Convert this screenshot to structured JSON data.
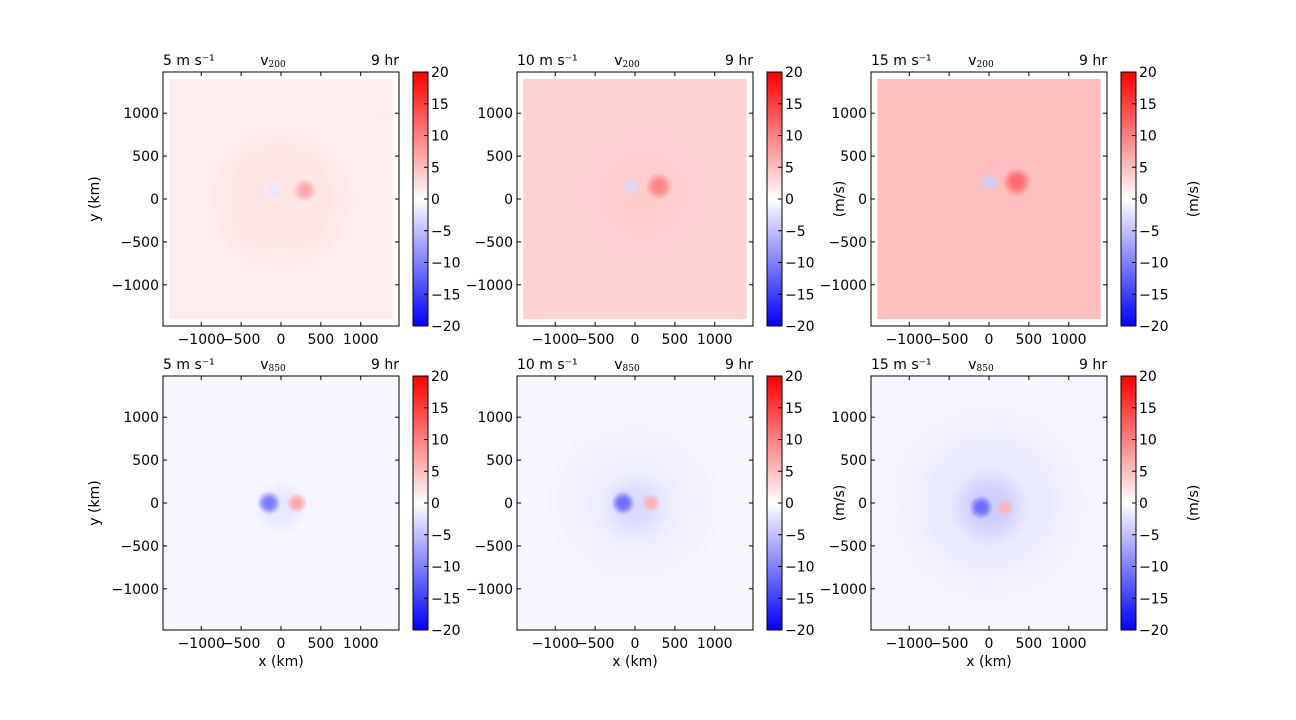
{
  "colors": {
    "bg": "#ffffff",
    "axis": "#000000",
    "cmap_min": "#0000ff",
    "cmap_mid": "#ffffff",
    "cmap_max": "#ff0000"
  },
  "chart_data": [
    {
      "type": "heatmap",
      "left_label": "5 m s⁻¹",
      "title": "v",
      "title_sub": "200",
      "right_label": "9 hr",
      "xlabel": "",
      "ylabel": "y (km)",
      "cbar_label": "",
      "xlim": [
        -1480,
        1480
      ],
      "ylim": [
        -1480,
        1480
      ],
      "xticks": [
        -1000,
        -500,
        0,
        500,
        1000
      ],
      "xtick_labels": [
        "−1000",
        "−500",
        "0",
        "500",
        "1000"
      ],
      "yticks": [
        -1000,
        -500,
        0,
        500,
        1000
      ],
      "ytick_labels": [
        "−1000",
        "−500",
        "0",
        "500",
        "1000"
      ],
      "clim": [
        -20,
        20
      ],
      "cbar_ticks": [
        20,
        15,
        10,
        5,
        0,
        -5,
        -10,
        -15,
        -20
      ],
      "cbar_tick_labels": [
        "20",
        "15",
        "10",
        "5",
        "0",
        "−5",
        "−10",
        "−15",
        "−20"
      ],
      "background_value": 1.5,
      "domain_half_width": 1400,
      "features": [
        {
          "x": 300,
          "y": 100,
          "value": 7,
          "radius": 150
        },
        {
          "x": -100,
          "y": 100,
          "value": -2,
          "radius": 110
        },
        {
          "x": 0,
          "y": 0,
          "value": 2,
          "radius": 950
        }
      ]
    },
    {
      "type": "heatmap",
      "left_label": "10 m s⁻¹",
      "title": "v",
      "title_sub": "200",
      "right_label": "9 hr",
      "xlabel": "",
      "ylabel": "",
      "cbar_label": "(m/s)",
      "xlim": [
        -1480,
        1480
      ],
      "ylim": [
        -1480,
        1480
      ],
      "xticks": [
        -1000,
        -500,
        0,
        500,
        1000
      ],
      "xtick_labels": [
        "−1000",
        "−500",
        "0",
        "500",
        "1000"
      ],
      "yticks": [
        -1000,
        -500,
        0,
        500,
        1000
      ],
      "ytick_labels": [
        "−1000",
        "−500",
        "0",
        "500",
        "1000"
      ],
      "clim": [
        -20,
        20
      ],
      "cbar_ticks": [
        20,
        15,
        10,
        5,
        0,
        -5,
        -10,
        -15,
        -20
      ],
      "cbar_tick_labels": [
        "20",
        "15",
        "10",
        "5",
        "0",
        "−5",
        "−10",
        "−15",
        "−20"
      ],
      "background_value": 3.5,
      "domain_half_width": 1400,
      "features": [
        {
          "x": 300,
          "y": 150,
          "value": 10,
          "radius": 170
        },
        {
          "x": -50,
          "y": 150,
          "value": -3,
          "radius": 110
        },
        {
          "x": 100,
          "y": 50,
          "value": 4,
          "radius": 800
        }
      ]
    },
    {
      "type": "heatmap",
      "left_label": "15 m s⁻¹",
      "title": "v",
      "title_sub": "200",
      "right_label": "9 hr",
      "xlabel": "",
      "ylabel": "",
      "cbar_label": "(m/s)",
      "xlim": [
        -1480,
        1480
      ],
      "ylim": [
        -1480,
        1480
      ],
      "xticks": [
        -1000,
        -500,
        0,
        500,
        1000
      ],
      "xtick_labels": [
        "−1000",
        "−500",
        "0",
        "500",
        "1000"
      ],
      "yticks": [
        -1000,
        -500,
        0,
        500,
        1000
      ],
      "ytick_labels": [
        "−1000",
        "−500",
        "0",
        "500",
        "1000"
      ],
      "clim": [
        -20,
        20
      ],
      "cbar_ticks": [
        20,
        15,
        10,
        5,
        0,
        -5,
        -10,
        -15,
        -20
      ],
      "cbar_tick_labels": [
        "20",
        "15",
        "10",
        "5",
        "0",
        "−5",
        "−10",
        "−15",
        "−20"
      ],
      "background_value": 5,
      "domain_half_width": 1400,
      "features": [
        {
          "x": 350,
          "y": 200,
          "value": 12,
          "radius": 180
        },
        {
          "x": 0,
          "y": 200,
          "value": -4,
          "radius": 120
        },
        {
          "x": 150,
          "y": 100,
          "value": 5,
          "radius": 750
        }
      ]
    },
    {
      "type": "heatmap",
      "left_label": "5 m s⁻¹",
      "title": "v",
      "title_sub": "850",
      "right_label": "9 hr",
      "xlabel": "x (km)",
      "ylabel": "y (km)",
      "cbar_label": "",
      "xlim": [
        -1480,
        1480
      ],
      "ylim": [
        -1480,
        1480
      ],
      "xticks": [
        -1000,
        -500,
        0,
        500,
        1000
      ],
      "xtick_labels": [
        "−1000",
        "−500",
        "0",
        "500",
        "1000"
      ],
      "yticks": [
        -1000,
        -500,
        0,
        500,
        1000
      ],
      "ytick_labels": [
        "−1000",
        "−500",
        "0",
        "500",
        "1000"
      ],
      "clim": [
        -20,
        20
      ],
      "cbar_ticks": [
        20,
        15,
        10,
        5,
        0,
        -5,
        -10,
        -15,
        -20
      ],
      "cbar_tick_labels": [
        "20",
        "15",
        "10",
        "5",
        "0",
        "−5",
        "−10",
        "−15",
        "−20"
      ],
      "background_value": -0.6,
      "domain_half_width": 1480,
      "features": [
        {
          "x": -150,
          "y": 0,
          "value": -11,
          "radius": 150
        },
        {
          "x": 200,
          "y": 0,
          "value": 7,
          "radius": 130
        },
        {
          "x": 0,
          "y": -50,
          "value": -2,
          "radius": 350
        }
      ]
    },
    {
      "type": "heatmap",
      "left_label": "10 m s⁻¹",
      "title": "v",
      "title_sub": "850",
      "right_label": "9 hr",
      "xlabel": "x (km)",
      "ylabel": "",
      "cbar_label": "(m/s)",
      "xlim": [
        -1480,
        1480
      ],
      "ylim": [
        -1480,
        1480
      ],
      "xticks": [
        -1000,
        -500,
        0,
        500,
        1000
      ],
      "xtick_labels": [
        "−1000",
        "−500",
        "0",
        "500",
        "1000"
      ],
      "yticks": [
        -1000,
        -500,
        0,
        500,
        1000
      ],
      "ytick_labels": [
        "−1000",
        "−500",
        "0",
        "500",
        "1000"
      ],
      "clim": [
        -20,
        20
      ],
      "cbar_ticks": [
        20,
        15,
        10,
        5,
        0,
        -5,
        -10,
        -15,
        -20
      ],
      "cbar_tick_labels": [
        "20",
        "15",
        "10",
        "5",
        "0",
        "−5",
        "−10",
        "−15",
        "−20"
      ],
      "background_value": -0.6,
      "domain_half_width": 1480,
      "features": [
        {
          "x": -150,
          "y": 0,
          "value": -12,
          "radius": 150
        },
        {
          "x": 200,
          "y": 0,
          "value": 6,
          "radius": 120
        },
        {
          "x": 0,
          "y": -50,
          "value": -3,
          "radius": 450
        },
        {
          "x": 0,
          "y": 0,
          "value": -1.5,
          "radius": 1100
        }
      ]
    },
    {
      "type": "heatmap",
      "left_label": "15 m s⁻¹",
      "title": "v",
      "title_sub": "850",
      "right_label": "9 hr",
      "xlabel": "x (km)",
      "ylabel": "",
      "cbar_label": "(m/s)",
      "xlim": [
        -1480,
        1480
      ],
      "ylim": [
        -1480,
        1480
      ],
      "xticks": [
        -1000,
        -500,
        0,
        500,
        1000
      ],
      "xtick_labels": [
        "−1000",
        "−500",
        "0",
        "500",
        "1000"
      ],
      "yticks": [
        -1000,
        -500,
        0,
        500,
        1000
      ],
      "ytick_labels": [
        "−1000",
        "−500",
        "0",
        "500",
        "1000"
      ],
      "clim": [
        -20,
        20
      ],
      "cbar_ticks": [
        20,
        15,
        10,
        5,
        0,
        -5,
        -10,
        -15,
        -20
      ],
      "cbar_tick_labels": [
        "20",
        "15",
        "10",
        "5",
        "0",
        "−5",
        "−10",
        "−15",
        "−20"
      ],
      "background_value": -0.8,
      "domain_half_width": 1480,
      "features": [
        {
          "x": -100,
          "y": -50,
          "value": -12,
          "radius": 150
        },
        {
          "x": 200,
          "y": -50,
          "value": 6,
          "radius": 110
        },
        {
          "x": 0,
          "y": -50,
          "value": -4,
          "radius": 500
        },
        {
          "x": 0,
          "y": 0,
          "value": -2,
          "radius": 1200
        }
      ]
    }
  ]
}
